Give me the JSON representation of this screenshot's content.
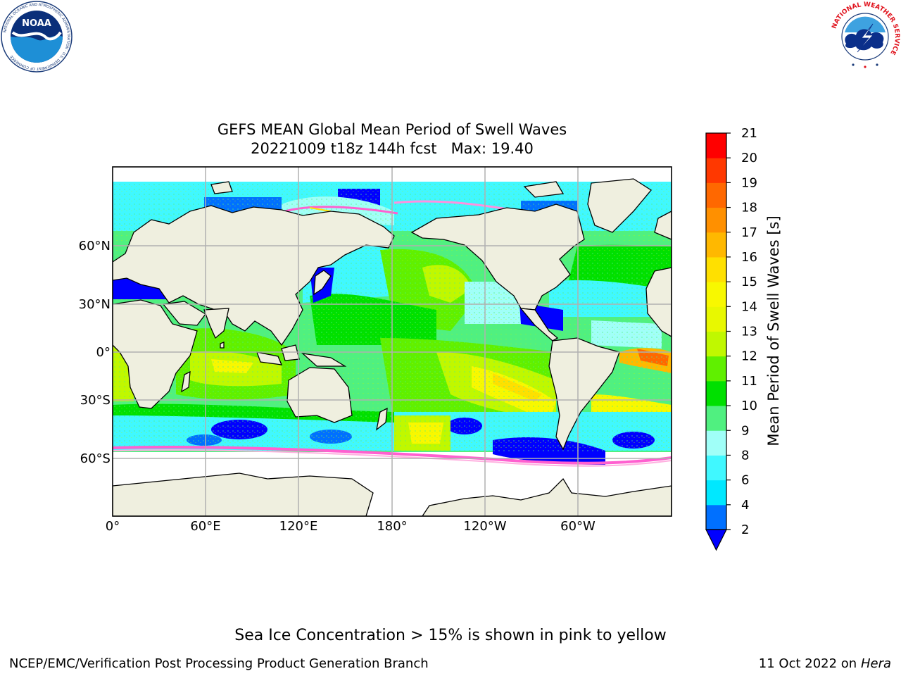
{
  "title": {
    "line1": "GEFS MEAN Global Mean Period of Swell Waves",
    "line2": "20221009 t18z 144h fcst   Max: 19.40"
  },
  "map": {
    "projection": "PlateCarree",
    "central_longitude": 180,
    "lon_ticks": [
      "0°",
      "60°E",
      "120°E",
      "180°",
      "120°W",
      "60°W"
    ],
    "lat_ticks": [
      "60°N",
      "30°N",
      "0°",
      "30°S",
      "60°S"
    ],
    "gridlines": true,
    "land_color": "#efefdf",
    "ocean_missing_color": "#ffffff"
  },
  "colorbar": {
    "label": "Mean Period of Swell Waves [s]",
    "ticks": [
      "2",
      "4",
      "6",
      "8",
      "9",
      "10",
      "11",
      "12",
      "13",
      "14",
      "15",
      "16",
      "17",
      "18",
      "19",
      "20",
      "21"
    ],
    "levels": [
      2,
      4,
      6,
      8,
      9,
      10,
      11,
      12,
      13,
      14,
      15,
      16,
      17,
      18,
      19,
      20,
      21
    ],
    "colors": [
      "#0070ff",
      "#00e8ff",
      "#40f8ff",
      "#a0fff8",
      "#50f080",
      "#00e000",
      "#60f000",
      "#c0f800",
      "#e8f800",
      "#f8f800",
      "#ffe000",
      "#ffb800",
      "#ff9000",
      "#ff6800",
      "#ff3800",
      "#ff0000"
    ],
    "under_color": "#0000ff",
    "extend": "min"
  },
  "note": "Sea Ice Concentration > 15% is shown in pink to yellow",
  "footer": {
    "left": "NCEP/EMC/Verification Post Processing Product Generation Branch",
    "right_date": "11 Oct 2022 on",
    "right_machine": "Hera"
  },
  "logos": {
    "noaa": "NOAA",
    "noaa_ring": "NATIONAL OCEANIC AND ATMOSPHERIC ADMINISTRATION · U.S. DEPARTMENT OF COMMERCE",
    "nws_ring": "NATIONAL WEATHER SERVICE"
  }
}
